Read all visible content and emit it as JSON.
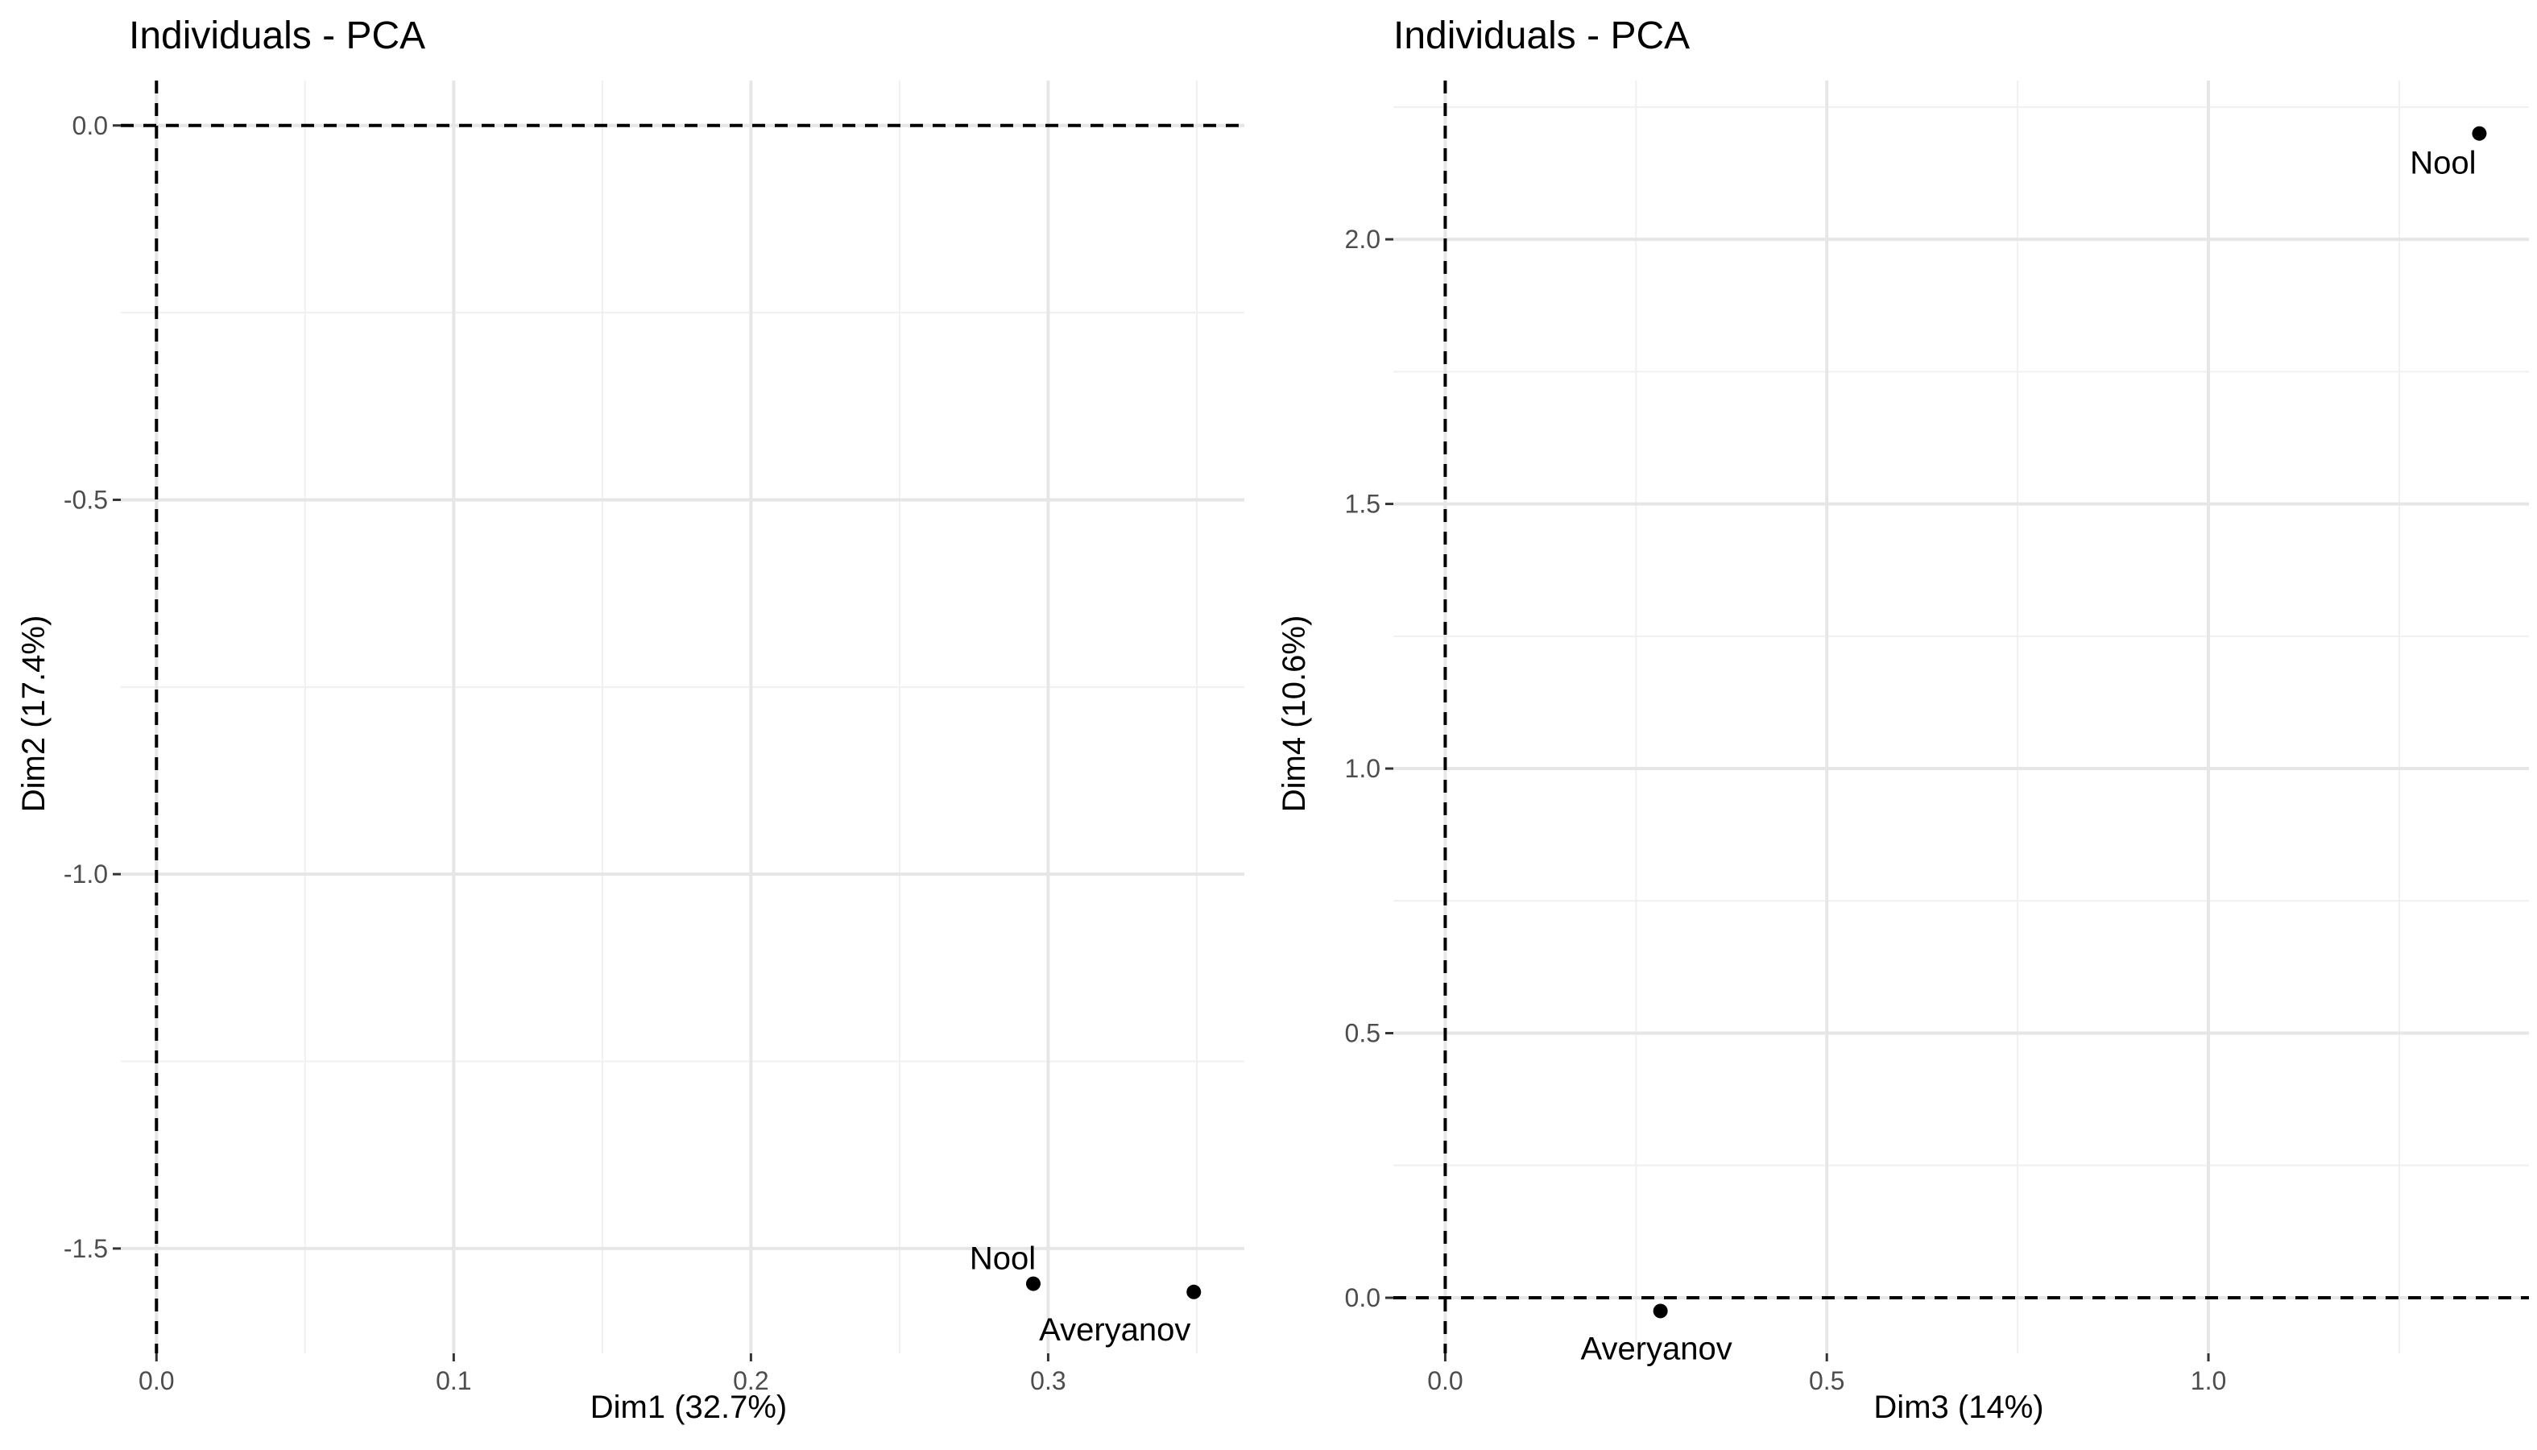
{
  "chart_data": [
    {
      "type": "scatter",
      "title": "Individuals - PCA",
      "xlabel": "Dim1 (32.7%)",
      "ylabel": "Dim2 (17.4%)",
      "xlim": [
        -0.012,
        0.366
      ],
      "ylim": [
        -1.64,
        0.06
      ],
      "x_ticks": [
        0.0,
        0.1,
        0.2,
        0.3
      ],
      "x_tick_labels": [
        "0.0",
        "0.1",
        "0.2",
        "0.3"
      ],
      "y_ticks": [
        0.0,
        -0.5,
        -1.0,
        -1.5
      ],
      "y_tick_labels": [
        "0.0",
        "-0.5",
        "-1.0",
        "-1.5"
      ],
      "reference_lines": {
        "x": 0,
        "y": 0
      },
      "grid": true,
      "points": [
        {
          "label": "Nool",
          "x": 0.295,
          "y": -1.547
        },
        {
          "label": "Averyanov",
          "x": 0.349,
          "y": -1.558
        }
      ]
    },
    {
      "type": "scatter",
      "title": "Individuals - PCA",
      "xlabel": "Dim3 (14%)",
      "ylabel": "Dim4 (10.6%)",
      "xlim": [
        -0.068,
        1.42
      ],
      "ylim": [
        -0.105,
        2.3
      ],
      "x_ticks": [
        0.0,
        0.5,
        1.0
      ],
      "x_tick_labels": [
        "0.0",
        "0.5",
        "1.0"
      ],
      "y_ticks": [
        0.0,
        0.5,
        1.0,
        1.5,
        2.0
      ],
      "y_tick_labels": [
        "0.0",
        "0.5",
        "1.0",
        "1.5",
        "2.0"
      ],
      "reference_lines": {
        "x": 0,
        "y": 0
      },
      "grid": true,
      "points": [
        {
          "label": "Nool",
          "x": 1.355,
          "y": 2.2
        },
        {
          "label": "Averyanov",
          "x": 0.282,
          "y": -0.025
        }
      ]
    }
  ]
}
